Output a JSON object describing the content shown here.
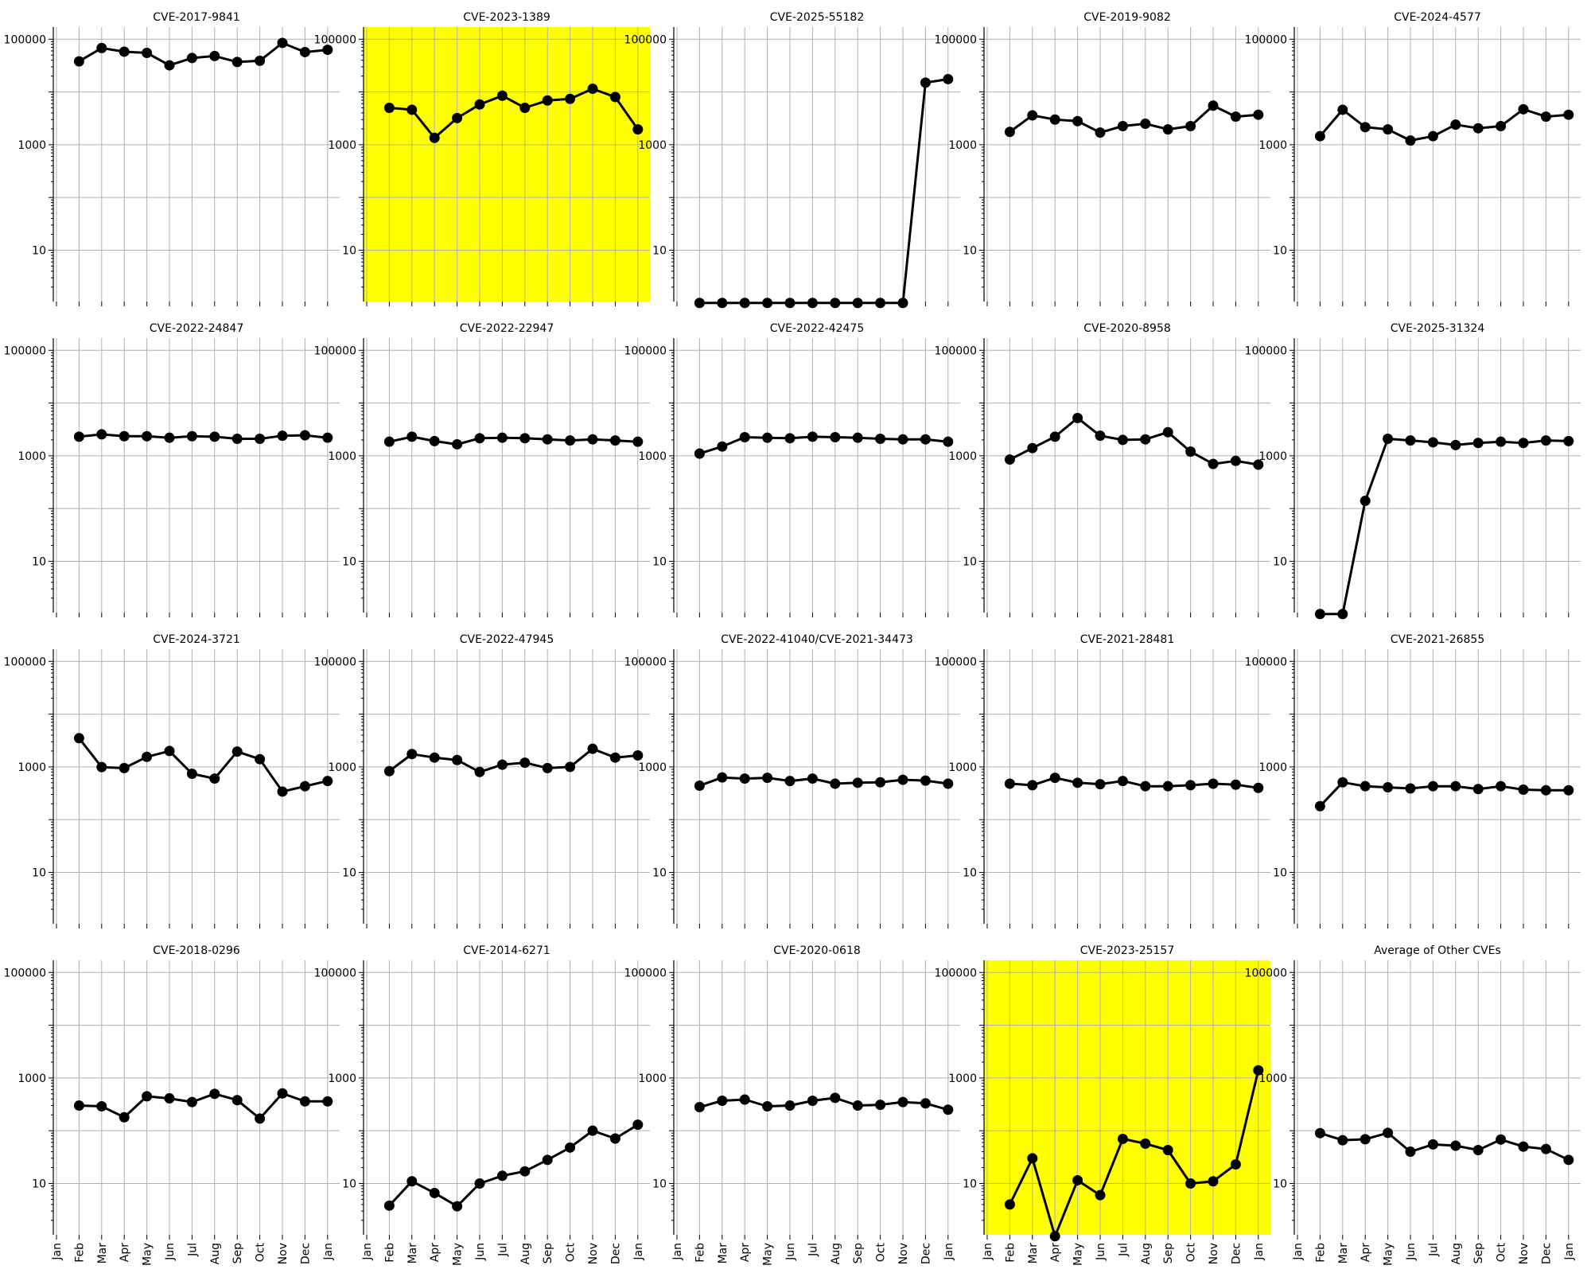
{
  "months": [
    "Jan",
    "Feb",
    "Mar",
    "Apr",
    "May",
    "Jun",
    "Jul",
    "Aug",
    "Sep",
    "Oct",
    "Nov",
    "Dec",
    "Jan"
  ],
  "y_ticks": [
    {
      "value": 10,
      "label": "10"
    },
    {
      "value": 1000,
      "label": "1000"
    },
    {
      "value": 100000,
      "label": "100000"
    }
  ],
  "colors": {
    "line": "#000000",
    "grid": "#b0b0b0",
    "highlight": "#ffff00"
  },
  "chart_data": [
    {
      "type": "line",
      "title": "CVE-2017-9841",
      "log_y": true,
      "grid": true,
      "highlight": false,
      "ylim": [
        1,
        170000
      ],
      "x": [
        "Feb",
        "Mar",
        "Apr",
        "May",
        "Jun",
        "Jul",
        "Aug",
        "Sep",
        "Oct",
        "Nov",
        "Dec",
        "Jan"
      ],
      "values": [
        38000,
        68000,
        58000,
        55000,
        32000,
        44000,
        48000,
        37000,
        39000,
        85000,
        57000,
        63000
      ]
    },
    {
      "type": "line",
      "title": "CVE-2023-1389",
      "log_y": true,
      "grid": true,
      "highlight": true,
      "ylim": [
        1,
        170000
      ],
      "x": [
        "Feb",
        "Mar",
        "Apr",
        "May",
        "Jun",
        "Jul",
        "Aug",
        "Sep",
        "Oct",
        "Nov",
        "Dec",
        "Jan"
      ],
      "values": [
        5000,
        4600,
        1350,
        3200,
        5800,
        8500,
        5000,
        6900,
        7400,
        11500,
        8000,
        1950
      ]
    },
    {
      "type": "line",
      "title": "CVE-2025-55182",
      "log_y": true,
      "grid": true,
      "highlight": false,
      "ylim": [
        1,
        170000
      ],
      "x": [
        "Feb",
        "Mar",
        "Apr",
        "May",
        "Jun",
        "Jul",
        "Aug",
        "Sep",
        "Oct",
        "Nov",
        "Dec",
        "Jan"
      ],
      "values": [
        1,
        1,
        1,
        1,
        1,
        1,
        1,
        1,
        1,
        1,
        15000,
        17500
      ]
    },
    {
      "type": "line",
      "title": "CVE-2019-9082",
      "log_y": true,
      "grid": true,
      "highlight": false,
      "ylim": [
        1,
        170000
      ],
      "x": [
        "Feb",
        "Mar",
        "Apr",
        "May",
        "Jun",
        "Jul",
        "Aug",
        "Sep",
        "Oct",
        "Nov",
        "Dec",
        "Jan"
      ],
      "values": [
        1750,
        3600,
        3000,
        2800,
        1700,
        2250,
        2500,
        1950,
        2250,
        5500,
        3400,
        3700
      ]
    },
    {
      "type": "line",
      "title": "CVE-2024-4577",
      "log_y": true,
      "grid": true,
      "highlight": false,
      "ylim": [
        1,
        170000
      ],
      "x": [
        "Feb",
        "Mar",
        "Apr",
        "May",
        "Jun",
        "Jul",
        "Aug",
        "Sep",
        "Oct",
        "Nov",
        "Dec",
        "Jan"
      ],
      "values": [
        1450,
        4600,
        2150,
        1950,
        1200,
        1450,
        2400,
        2050,
        2250,
        4700,
        3400,
        3700
      ]
    },
    {
      "type": "line",
      "title": "CVE-2022-24847",
      "log_y": true,
      "grid": true,
      "highlight": false,
      "ylim": [
        1,
        170000
      ],
      "x": [
        "Feb",
        "Mar",
        "Apr",
        "May",
        "Jun",
        "Jul",
        "Aug",
        "Sep",
        "Oct",
        "Nov",
        "Dec",
        "Jan"
      ],
      "values": [
        2300,
        2550,
        2350,
        2350,
        2200,
        2350,
        2300,
        2100,
        2100,
        2400,
        2450,
        2200
      ]
    },
    {
      "type": "line",
      "title": "CVE-2022-22947",
      "log_y": true,
      "grid": true,
      "highlight": false,
      "ylim": [
        1,
        170000
      ],
      "x": [
        "Feb",
        "Mar",
        "Apr",
        "May",
        "Jun",
        "Jul",
        "Aug",
        "Sep",
        "Oct",
        "Nov",
        "Dec",
        "Jan"
      ],
      "values": [
        1850,
        2300,
        1900,
        1650,
        2150,
        2200,
        2150,
        2050,
        1950,
        2050,
        1950,
        1850
      ]
    },
    {
      "type": "line",
      "title": "CVE-2022-42475",
      "log_y": true,
      "grid": true,
      "highlight": false,
      "ylim": [
        1,
        170000
      ],
      "x": [
        "Feb",
        "Mar",
        "Apr",
        "May",
        "Jun",
        "Jul",
        "Aug",
        "Sep",
        "Oct",
        "Nov",
        "Dec",
        "Jan"
      ],
      "values": [
        1100,
        1500,
        2250,
        2200,
        2150,
        2300,
        2250,
        2200,
        2100,
        2050,
        2050,
        1850
      ]
    },
    {
      "type": "line",
      "title": "CVE-2020-8958",
      "log_y": true,
      "grid": true,
      "highlight": false,
      "ylim": [
        1,
        170000
      ],
      "x": [
        "Feb",
        "Mar",
        "Apr",
        "May",
        "Jun",
        "Jul",
        "Aug",
        "Sep",
        "Oct",
        "Nov",
        "Dec",
        "Jan"
      ],
      "values": [
        850,
        1400,
        2300,
        5200,
        2400,
        2000,
        2050,
        2800,
        1200,
        700,
        800,
        680
      ]
    },
    {
      "type": "line",
      "title": "CVE-2025-31324",
      "log_y": true,
      "grid": true,
      "highlight": false,
      "ylim": [
        1,
        170000
      ],
      "x": [
        "Feb",
        "Mar",
        "Apr",
        "May",
        "Jun",
        "Jul",
        "Aug",
        "Sep",
        "Oct",
        "Nov",
        "Dec",
        "Jan"
      ],
      "values": [
        1,
        1,
        140,
        2100,
        1950,
        1800,
        1600,
        1750,
        1850,
        1750,
        1950,
        1900
      ]
    },
    {
      "type": "line",
      "title": "CVE-2024-3721",
      "log_y": true,
      "grid": true,
      "highlight": false,
      "ylim": [
        1,
        170000
      ],
      "x": [
        "Feb",
        "Mar",
        "Apr",
        "May",
        "Jun",
        "Jul",
        "Aug",
        "Sep",
        "Oct",
        "Nov",
        "Dec",
        "Jan"
      ],
      "values": [
        3500,
        990,
        950,
        1550,
        2000,
        740,
        600,
        1950,
        1400,
        340,
        430,
        540
      ]
    },
    {
      "type": "line",
      "title": "CVE-2022-47945",
      "log_y": true,
      "grid": true,
      "highlight": false,
      "ylim": [
        1,
        170000
      ],
      "x": [
        "Feb",
        "Mar",
        "Apr",
        "May",
        "Jun",
        "Jul",
        "Aug",
        "Sep",
        "Oct",
        "Nov",
        "Dec",
        "Jan"
      ],
      "values": [
        830,
        1750,
        1500,
        1350,
        800,
        1100,
        1200,
        950,
        1000,
        2200,
        1500,
        1650
      ]
    },
    {
      "type": "line",
      "title": "CVE-2022-41040/CVE-2021-34473",
      "log_y": true,
      "grid": true,
      "highlight": false,
      "ylim": [
        1,
        170000
      ],
      "x": [
        "Feb",
        "Mar",
        "Apr",
        "May",
        "Jun",
        "Jul",
        "Aug",
        "Sep",
        "Oct",
        "Nov",
        "Dec",
        "Jan"
      ],
      "values": [
        440,
        630,
        600,
        620,
        540,
        600,
        480,
        500,
        510,
        570,
        550,
        480
      ]
    },
    {
      "type": "line",
      "title": "CVE-2021-28481",
      "log_y": true,
      "grid": true,
      "highlight": false,
      "ylim": [
        1,
        170000
      ],
      "x": [
        "Feb",
        "Mar",
        "Apr",
        "May",
        "Jun",
        "Jul",
        "Aug",
        "Sep",
        "Oct",
        "Nov",
        "Dec",
        "Jan"
      ],
      "values": [
        480,
        450,
        620,
        500,
        470,
        540,
        430,
        430,
        450,
        480,
        460,
        400
      ]
    },
    {
      "type": "line",
      "title": "CVE-2021-26855",
      "log_y": true,
      "grid": true,
      "highlight": false,
      "ylim": [
        1,
        170000
      ],
      "x": [
        "Feb",
        "Mar",
        "Apr",
        "May",
        "Jun",
        "Jul",
        "Aug",
        "Sep",
        "Oct",
        "Nov",
        "Dec",
        "Jan"
      ],
      "values": [
        180,
        510,
        430,
        410,
        390,
        430,
        430,
        380,
        430,
        370,
        360,
        360
      ]
    },
    {
      "type": "line",
      "title": "CVE-2018-0296",
      "log_y": true,
      "grid": true,
      "highlight": false,
      "ylim": [
        1,
        170000
      ],
      "x": [
        "Feb",
        "Mar",
        "Apr",
        "May",
        "Jun",
        "Jul",
        "Aug",
        "Sep",
        "Oct",
        "Nov",
        "Dec",
        "Jan"
      ],
      "values": [
        300,
        290,
        180,
        450,
        410,
        350,
        500,
        380,
        170,
        510,
        360,
        360
      ]
    },
    {
      "type": "line",
      "title": "CVE-2014-6271",
      "log_y": true,
      "grid": true,
      "highlight": false,
      "ylim": [
        1,
        170000
      ],
      "x": [
        "Feb",
        "Mar",
        "Apr",
        "May",
        "Jun",
        "Jul",
        "Aug",
        "Sep",
        "Oct",
        "Nov",
        "Dec",
        "Jan"
      ],
      "values": [
        3.8,
        11,
        6.6,
        3.7,
        10,
        14,
        17,
        28,
        48,
        100,
        71,
        130
      ]
    },
    {
      "type": "line",
      "title": "CVE-2020-0618",
      "log_y": true,
      "grid": true,
      "highlight": false,
      "ylim": [
        1,
        170000
      ],
      "x": [
        "Feb",
        "Mar",
        "Apr",
        "May",
        "Jun",
        "Jul",
        "Aug",
        "Sep",
        "Oct",
        "Nov",
        "Dec",
        "Jan"
      ],
      "values": [
        280,
        370,
        390,
        290,
        300,
        370,
        420,
        300,
        310,
        350,
        330,
        250
      ]
    },
    {
      "type": "line",
      "title": "CVE-2023-25157",
      "log_y": true,
      "grid": true,
      "highlight": true,
      "ylim": [
        1,
        170000
      ],
      "x": [
        "Feb",
        "Mar",
        "Apr",
        "May",
        "Jun",
        "Jul",
        "Aug",
        "Sep",
        "Oct",
        "Nov",
        "Dec",
        "Jan"
      ],
      "values": [
        4,
        30,
        1,
        11.5,
        6,
        70,
        57,
        43,
        10,
        11,
        23,
        1400
      ]
    },
    {
      "type": "line",
      "title": "Average of Other CVEs",
      "log_y": true,
      "grid": true,
      "highlight": false,
      "ylim": [
        1,
        170000
      ],
      "x": [
        "Feb",
        "Mar",
        "Apr",
        "May",
        "Jun",
        "Jul",
        "Aug",
        "Sep",
        "Oct",
        "Nov",
        "Dec",
        "Jan"
      ],
      "values": [
        90,
        66,
        69,
        91,
        40,
        55,
        52,
        43,
        68,
        50,
        45,
        28
      ]
    }
  ]
}
